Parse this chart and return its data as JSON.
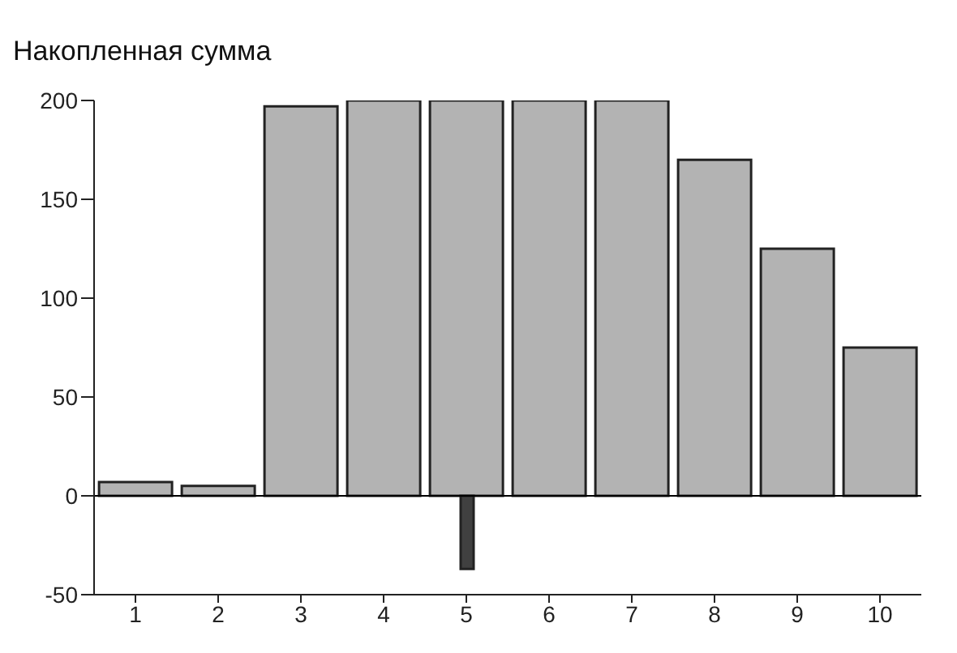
{
  "chart_data": {
    "type": "bar",
    "title": "Накопленная сумма",
    "categories": [
      "1",
      "2",
      "3",
      "4",
      "5",
      "6",
      "7",
      "8",
      "9",
      "10"
    ],
    "series": [
      {
        "color": "#b3b3b3",
        "values": [
          7,
          5,
          197,
          200,
          200,
          200,
          200,
          170,
          125,
          75
        ]
      },
      {
        "color": "#404040",
        "values": [
          null,
          null,
          null,
          null,
          -37,
          null,
          null,
          null,
          null,
          null
        ]
      }
    ],
    "ylim": [
      -50,
      200
    ],
    "yticks": [
      -50,
      0,
      50,
      100,
      150,
      200
    ],
    "ref_lines": [
      {
        "axis": "y",
        "value": 0,
        "color": "#000000"
      }
    ],
    "grid": false,
    "legend": false
  }
}
